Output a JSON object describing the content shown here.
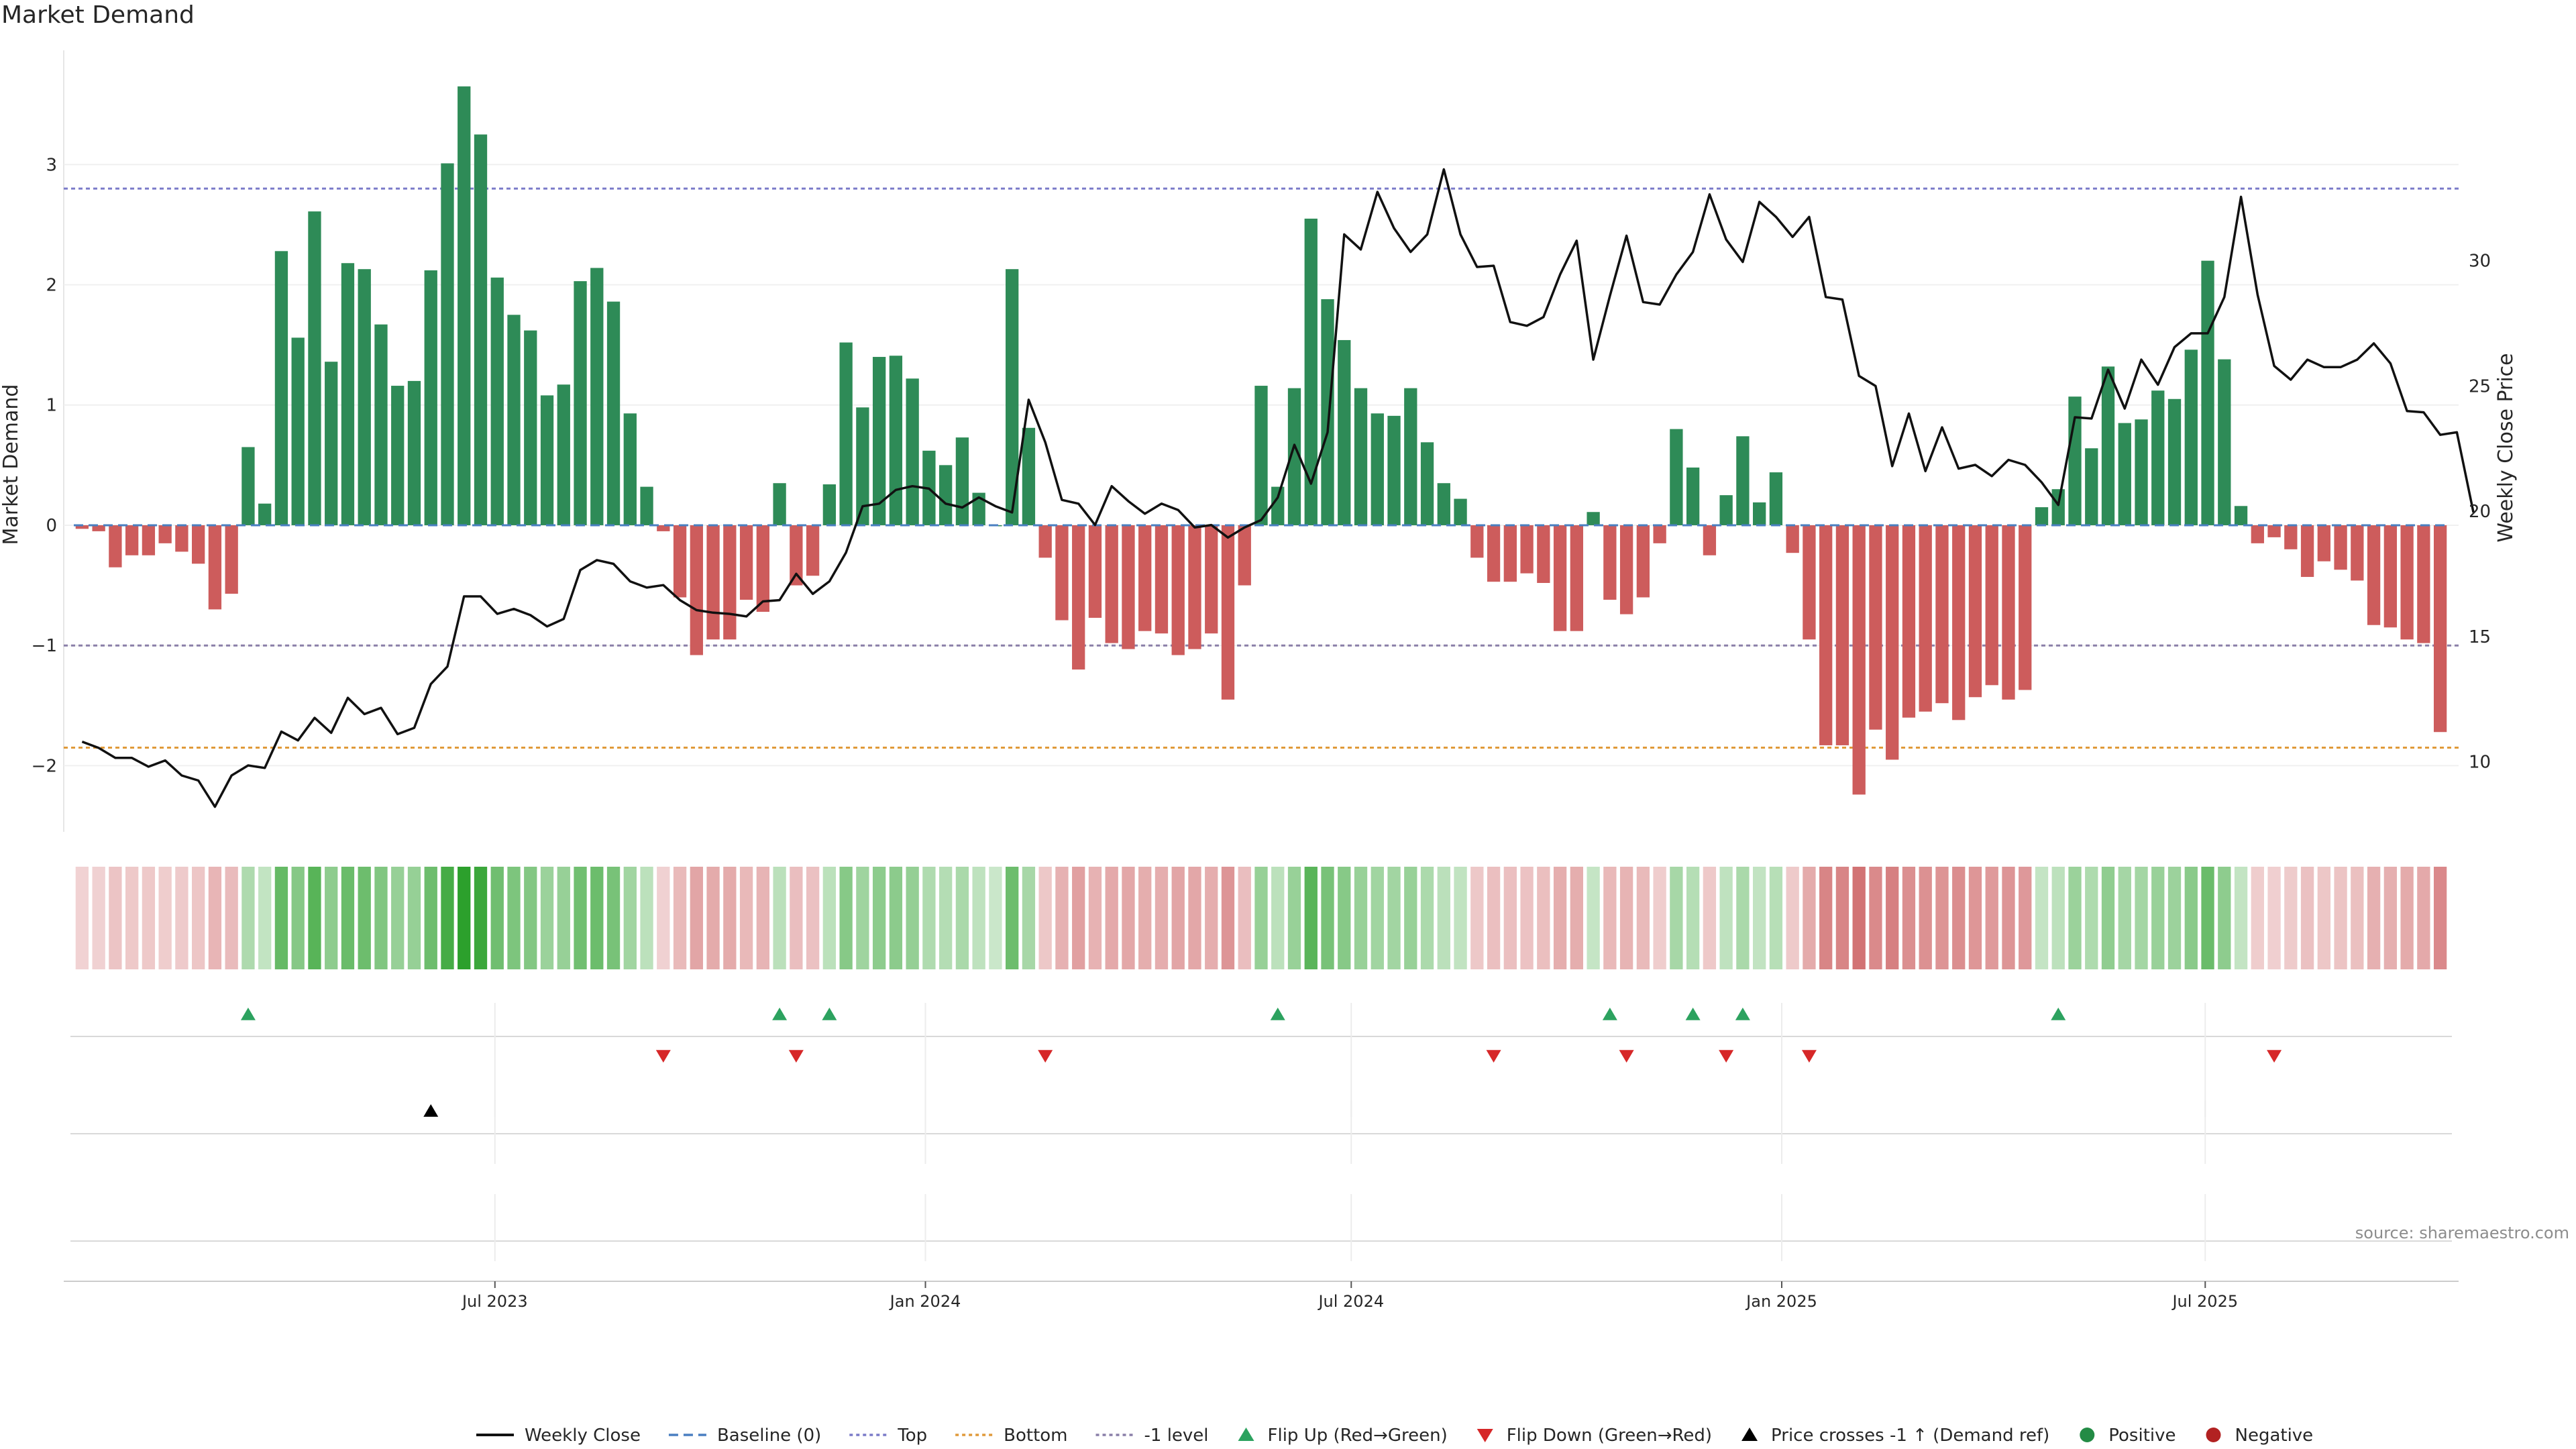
{
  "title": "Market Demand",
  "source": "source: sharemaestro.com",
  "chart_data": {
    "type": "bar",
    "title": "Market Demand",
    "ylabel_left": "Market Demand",
    "ylabel_right": "Weekly Close Price",
    "y_left_ticks": [
      "−2",
      "−1",
      "0",
      "1",
      "2",
      "3"
    ],
    "y_left_tick_values": [
      -2,
      -1,
      0,
      1,
      2,
      3
    ],
    "y_right_ticks": [
      "10",
      "15",
      "20",
      "25",
      "30"
    ],
    "y_right_tick_values": [
      10,
      15,
      20,
      25,
      30
    ],
    "ylim_left": [
      -2.55,
      3.95
    ],
    "ylim_right": [
      7.2,
      38.4
    ],
    "x_start": "2023-01-02",
    "x_end": "2025-10-13",
    "x_ticks": [
      {
        "label": "Jul 2023",
        "date": "2023-07-01"
      },
      {
        "label": "Jan 2024",
        "date": "2024-01-01"
      },
      {
        "label": "Jul 2024",
        "date": "2024-07-01"
      },
      {
        "label": "Jan 2025",
        "date": "2025-01-01"
      },
      {
        "label": "Jul 2025",
        "date": "2025-07-01"
      }
    ],
    "reference_lines": {
      "top": 2.8,
      "bottom": -1.85,
      "minus_one": -1.0,
      "baseline": 0
    },
    "series": [
      {
        "name": "Market Demand",
        "values": [
          -0.03,
          -0.05,
          -0.35,
          -0.25,
          -0.25,
          -0.15,
          -0.22,
          -0.32,
          -0.7,
          -0.57,
          0.65,
          0.18,
          2.28,
          1.56,
          2.61,
          1.36,
          2.18,
          2.13,
          1.67,
          1.16,
          1.2,
          2.12,
          3.01,
          3.65,
          3.25,
          2.06,
          1.75,
          1.62,
          1.08,
          1.17,
          2.03,
          2.14,
          1.86,
          0.93,
          0.32,
          -0.05,
          -0.6,
          -1.08,
          -0.95,
          -0.95,
          -0.62,
          -0.72,
          0.35,
          -0.5,
          -0.42,
          0.34,
          1.52,
          0.98,
          1.4,
          1.41,
          1.22,
          0.62,
          0.5,
          0.73,
          0.27,
          0.0,
          2.13,
          0.81,
          -0.27,
          -0.79,
          -1.2,
          -0.77,
          -0.98,
          -1.03,
          -0.88,
          -0.9,
          -1.08,
          -1.03,
          -0.9,
          -1.45,
          -0.5,
          1.16,
          0.32,
          1.14,
          2.55,
          1.88,
          1.54,
          1.14,
          0.93,
          0.91,
          1.14,
          0.69,
          0.35,
          0.22,
          -0.27,
          -0.47,
          -0.47,
          -0.4,
          -0.48,
          -0.88,
          -0.88,
          0.11,
          -0.62,
          -0.74,
          -0.6,
          -0.15,
          0.8,
          0.48,
          -0.25,
          0.25,
          0.74,
          0.19,
          0.44,
          -0.23,
          -0.95,
          -1.83,
          -1.83,
          -2.24,
          -1.7,
          -1.95,
          -1.6,
          -1.55,
          -1.48,
          -1.62,
          -1.43,
          -1.33,
          -1.45,
          -1.37,
          0.15,
          0.3,
          1.07,
          0.64,
          1.32,
          0.85,
          0.88,
          1.12,
          1.05,
          1.46,
          2.2,
          1.38,
          0.16,
          -0.15,
          -0.1,
          -0.2,
          -0.43,
          -0.3,
          -0.37,
          -0.46,
          -0.83,
          -0.85,
          -0.95,
          -0.98,
          -1.72
        ]
      },
      {
        "name": "Weekly Close",
        "values": [
          10.8,
          10.55,
          10.15,
          10.15,
          9.8,
          10.05,
          9.45,
          9.25,
          8.2,
          9.45,
          9.85,
          9.75,
          11.2,
          10.85,
          11.75,
          11.15,
          12.55,
          11.9,
          12.15,
          11.1,
          11.35,
          13.1,
          13.8,
          16.6,
          16.6,
          15.9,
          16.1,
          15.85,
          15.4,
          15.7,
          17.65,
          18.05,
          17.9,
          17.2,
          16.95,
          17.05,
          16.45,
          16.05,
          15.95,
          15.9,
          15.8,
          16.4,
          16.45,
          17.5,
          16.7,
          17.2,
          18.35,
          20.2,
          20.3,
          20.85,
          21.0,
          20.9,
          20.3,
          20.15,
          20.55,
          20.2,
          19.95,
          24.45,
          22.75,
          20.45,
          20.3,
          19.45,
          21.0,
          20.4,
          19.9,
          20.3,
          20.05,
          19.35,
          19.45,
          18.95,
          19.35,
          19.65,
          20.55,
          22.65,
          21.1,
          23.15,
          31.05,
          30.45,
          32.75,
          31.3,
          30.35,
          31.05,
          33.65,
          31.05,
          29.75,
          29.8,
          27.55,
          27.4,
          27.75,
          29.45,
          30.8,
          26.05,
          28.6,
          31.0,
          28.35,
          28.25,
          29.45,
          30.35,
          32.65,
          30.85,
          29.95,
          32.35,
          31.75,
          30.95,
          31.75,
          28.55,
          28.45,
          25.4,
          25.0,
          21.8,
          23.9,
          21.6,
          23.35,
          21.7,
          21.85,
          21.4,
          22.05,
          21.85,
          21.15,
          20.25,
          23.75,
          23.7,
          25.65,
          24.1,
          26.05,
          25.05,
          26.55,
          27.1,
          27.1,
          28.55,
          32.55,
          28.65,
          25.8,
          25.25,
          26.05,
          25.75,
          25.75,
          26.05,
          26.7,
          25.9,
          24.0,
          23.95,
          23.05,
          23.15,
          19.95
        ]
      }
    ],
    "flip_up_weeks": [
      10,
      42,
      45,
      72,
      92,
      97,
      100,
      119
    ],
    "flip_down_weeks": [
      35,
      43,
      58,
      85,
      93,
      99,
      104,
      132
    ],
    "price_cross_weeks": [
      21
    ],
    "legend_position": "bottom-center",
    "legend": [
      {
        "label": "Weekly Close",
        "kind": "line",
        "color": "#111111"
      },
      {
        "label": "Baseline (0)",
        "kind": "dash",
        "color": "#4a7fc1"
      },
      {
        "label": "Top",
        "kind": "dot",
        "color": "#7b7bc9"
      },
      {
        "label": "Bottom",
        "kind": "dot",
        "color": "#e09a3a"
      },
      {
        "label": "-1 level",
        "kind": "dot",
        "color": "#8a7fa8"
      },
      {
        "label": "Flip Up (Red→Green)",
        "kind": "tri-up",
        "color": "#2ca25f"
      },
      {
        "label": "Flip Down (Green→Red)",
        "kind": "tri-down",
        "color": "#d62728"
      },
      {
        "label": "Price crosses -1 ↑ (Demand ref)",
        "kind": "tri-up",
        "color": "#000000"
      },
      {
        "label": "Positive",
        "kind": "circle",
        "color": "#238b45"
      },
      {
        "label": "Negative",
        "kind": "circle",
        "color": "#b22222"
      }
    ],
    "colors": {
      "positive_bar": "#2e8b57",
      "negative_bar": "#cd5c5c",
      "price_line": "#111111",
      "top_line": "#7b7bc9",
      "bottom_line": "#e09a3a",
      "minus_one_line": "#8a7fa8",
      "baseline": "#4a7fc1",
      "flip_up": "#2ca25f",
      "flip_down": "#d62728",
      "price_cross": "#000000"
    }
  }
}
